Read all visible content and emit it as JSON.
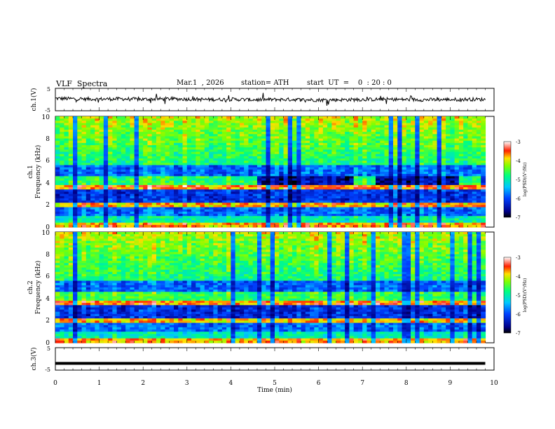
{
  "header": {
    "title": "VLF  Spectra",
    "date": "Mar.1  , 2026",
    "station": "station= ATH",
    "start_ut": "start  UT  =    0  : 20 : 0"
  },
  "chart_data": [
    {
      "type": "line",
      "panel": "ch1-waveform",
      "ylabel": "ch.1(V)",
      "ylim": [
        -5,
        5
      ],
      "yticks": [
        "5",
        "-5"
      ],
      "x": [
        0,
        0.5,
        1,
        1.5,
        2,
        2.5,
        3,
        3.5,
        4,
        4.5,
        5,
        5.5,
        6,
        6.5,
        7,
        7.5,
        8,
        8.5,
        9,
        9.5,
        9.8
      ],
      "values": [
        0.5,
        0.3,
        0.2,
        0.3,
        0.1,
        0.3,
        0.2,
        0.0,
        0.1,
        -0.1,
        0.0,
        0.0,
        -0.2,
        -0.1,
        0.0,
        0.1,
        0.0,
        -0.1,
        0.0,
        0.1,
        0.0
      ]
    },
    {
      "type": "heatmap",
      "panel": "ch1-spectrogram",
      "ylabel_top": "ch.1",
      "ylabel": "Frequency (kHz)",
      "ylim": [
        0,
        10
      ],
      "yticks": [
        "0",
        "2",
        "4",
        "6",
        "8",
        "10"
      ],
      "xlim": [
        0,
        9.8
      ],
      "colorbar": {
        "label": "log(PSD)(V²/Hz)",
        "ticks": [
          "-3",
          "-4",
          "-5",
          "-6",
          "-7"
        ],
        "range": [
          -7,
          -3
        ]
      },
      "band_segments_4khz": [
        [
          0,
          4.6
        ],
        [
          6.8,
          7.3
        ],
        [
          9.2,
          9.7
        ]
      ]
    },
    {
      "type": "heatmap",
      "panel": "ch2-spectrogram",
      "ylabel_top": "ch.2",
      "ylabel": "Frequency (kHz)",
      "ylim": [
        0,
        10
      ],
      "yticks": [
        "0",
        "2",
        "4",
        "6",
        "8",
        "10"
      ],
      "xlim": [
        0,
        9.8
      ],
      "colorbar": {
        "label": "log(PSD)(V²/Hz)",
        "ticks": [
          "-3",
          "-4",
          "-5",
          "-6",
          "-7"
        ],
        "range": [
          -7,
          -3
        ]
      },
      "band_segments_4khz": [
        [
          4.4,
          4.6
        ],
        [
          6.8,
          7.3
        ],
        [
          9.2,
          9.7
        ]
      ]
    },
    {
      "type": "line",
      "panel": "ch3-waveform",
      "ylabel": "ch.3(V)",
      "ylim": [
        -5,
        5
      ],
      "yticks": [
        "5",
        "-5"
      ],
      "x": [
        0,
        9.8
      ],
      "values": [
        -2,
        -2
      ]
    }
  ],
  "x_axis": {
    "label": "Time  (min)",
    "range": [
      0,
      10
    ],
    "ticks": [
      "0",
      "1",
      "2",
      "3",
      "4",
      "5",
      "6",
      "7",
      "8",
      "9",
      "10"
    ]
  },
  "colors": {
    "waveform": "#000000",
    "spectrogram_low": "#000066",
    "spectrogram_high": "#ff0000"
  }
}
